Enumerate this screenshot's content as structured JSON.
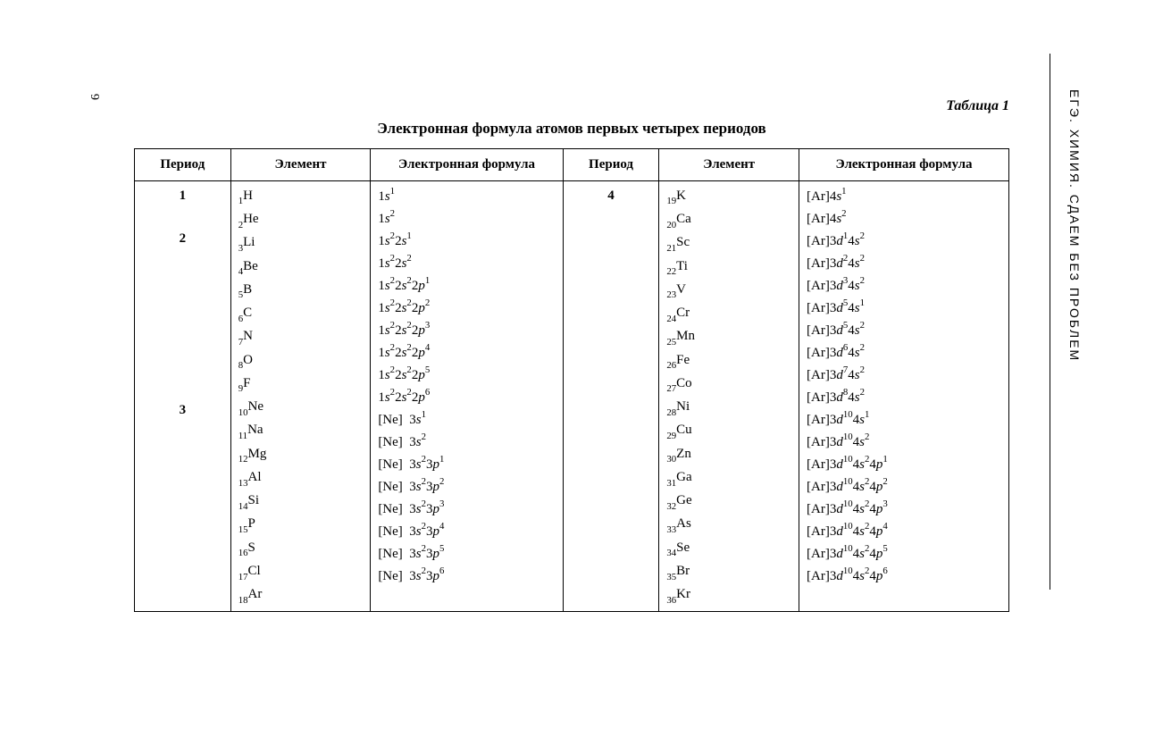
{
  "meta": {
    "side_text": "ЕГЭ. ХИМИЯ. СДАЕМ БЕЗ ПРОБЛЕМ",
    "page_number": "6",
    "table_label": "Таблица 1",
    "title": "Электронная формула атомов первых четырех периодов",
    "background_color": "#ffffff",
    "text_color": "#000000",
    "border_color": "#000000",
    "title_fontsize": 17,
    "body_fontsize": 15
  },
  "headers": {
    "period": "Период",
    "element": "Элемент",
    "formula": "Электронная формула"
  },
  "left": [
    {
      "period": "1",
      "z": "1",
      "sym": "H",
      "formula": [
        {
          "t": "1"
        },
        {
          "t": "s",
          "i": 1
        },
        {
          "t": "1",
          "sup": 1
        }
      ]
    },
    {
      "period": "",
      "z": "2",
      "sym": "He",
      "formula": [
        {
          "t": "1"
        },
        {
          "t": "s",
          "i": 1
        },
        {
          "t": "2",
          "sup": 1
        }
      ]
    },
    {
      "period": "2",
      "z": "3",
      "sym": "Li",
      "formula": [
        {
          "t": "1"
        },
        {
          "t": "s",
          "i": 1
        },
        {
          "t": "2",
          "sup": 1
        },
        {
          "t": "2"
        },
        {
          "t": "s",
          "i": 1
        },
        {
          "t": "1",
          "sup": 1
        }
      ]
    },
    {
      "period": "",
      "z": "4",
      "sym": "Be",
      "formula": [
        {
          "t": "1"
        },
        {
          "t": "s",
          "i": 1
        },
        {
          "t": "2",
          "sup": 1
        },
        {
          "t": "2"
        },
        {
          "t": "s",
          "i": 1
        },
        {
          "t": "2",
          "sup": 1
        }
      ]
    },
    {
      "period": "",
      "z": "5",
      "sym": "B",
      "formula": [
        {
          "t": "1"
        },
        {
          "t": "s",
          "i": 1
        },
        {
          "t": "2",
          "sup": 1
        },
        {
          "t": "2"
        },
        {
          "t": "s",
          "i": 1
        },
        {
          "t": "2",
          "sup": 1
        },
        {
          "t": "2"
        },
        {
          "t": "p",
          "i": 1
        },
        {
          "t": "1",
          "sup": 1
        }
      ]
    },
    {
      "period": "",
      "z": "6",
      "sym": "C",
      "formula": [
        {
          "t": "1"
        },
        {
          "t": "s",
          "i": 1
        },
        {
          "t": "2",
          "sup": 1
        },
        {
          "t": "2"
        },
        {
          "t": "s",
          "i": 1
        },
        {
          "t": "2",
          "sup": 1
        },
        {
          "t": "2"
        },
        {
          "t": "p",
          "i": 1
        },
        {
          "t": "2",
          "sup": 1
        }
      ]
    },
    {
      "period": "",
      "z": "7",
      "sym": "N",
      "formula": [
        {
          "t": "1"
        },
        {
          "t": "s",
          "i": 1
        },
        {
          "t": "2",
          "sup": 1
        },
        {
          "t": "2"
        },
        {
          "t": "s",
          "i": 1
        },
        {
          "t": "2",
          "sup": 1
        },
        {
          "t": "2"
        },
        {
          "t": "p",
          "i": 1
        },
        {
          "t": "3",
          "sup": 1
        }
      ]
    },
    {
      "period": "",
      "z": "8",
      "sym": "O",
      "formula": [
        {
          "t": "1"
        },
        {
          "t": "s",
          "i": 1
        },
        {
          "t": "2",
          "sup": 1
        },
        {
          "t": "2"
        },
        {
          "t": "s",
          "i": 1
        },
        {
          "t": "2",
          "sup": 1
        },
        {
          "t": "2"
        },
        {
          "t": "p",
          "i": 1
        },
        {
          "t": "4",
          "sup": 1
        }
      ]
    },
    {
      "period": "",
      "z": "9",
      "sym": "F",
      "formula": [
        {
          "t": "1"
        },
        {
          "t": "s",
          "i": 1
        },
        {
          "t": "2",
          "sup": 1
        },
        {
          "t": "2"
        },
        {
          "t": "s",
          "i": 1
        },
        {
          "t": "2",
          "sup": 1
        },
        {
          "t": "2"
        },
        {
          "t": "p",
          "i": 1
        },
        {
          "t": "5",
          "sup": 1
        }
      ]
    },
    {
      "period": "",
      "z": "10",
      "sym": "Ne",
      "formula": [
        {
          "t": "1"
        },
        {
          "t": "s",
          "i": 1
        },
        {
          "t": "2",
          "sup": 1
        },
        {
          "t": "2"
        },
        {
          "t": "s",
          "i": 1
        },
        {
          "t": "2",
          "sup": 1
        },
        {
          "t": "2"
        },
        {
          "t": "p",
          "i": 1
        },
        {
          "t": "6",
          "sup": 1
        }
      ]
    },
    {
      "period": "3",
      "z": "11",
      "sym": "Na",
      "formula": [
        {
          "t": "[Ne]  3"
        },
        {
          "t": "s",
          "i": 1
        },
        {
          "t": "1",
          "sup": 1
        }
      ]
    },
    {
      "period": "",
      "z": "12",
      "sym": "Mg",
      "formula": [
        {
          "t": "[Ne]  3"
        },
        {
          "t": "s",
          "i": 1
        },
        {
          "t": "2",
          "sup": 1
        }
      ]
    },
    {
      "period": "",
      "z": "13",
      "sym": "Al",
      "formula": [
        {
          "t": "[Ne]  3"
        },
        {
          "t": "s",
          "i": 1
        },
        {
          "t": "2",
          "sup": 1
        },
        {
          "t": "3"
        },
        {
          "t": "p",
          "i": 1
        },
        {
          "t": "1",
          "sup": 1
        }
      ]
    },
    {
      "period": "",
      "z": "14",
      "sym": "Si",
      "formula": [
        {
          "t": "[Ne]  3"
        },
        {
          "t": "s",
          "i": 1
        },
        {
          "t": "2",
          "sup": 1
        },
        {
          "t": "3"
        },
        {
          "t": "p",
          "i": 1
        },
        {
          "t": "2",
          "sup": 1
        }
      ]
    },
    {
      "period": "",
      "z": "15",
      "sym": "P",
      "formula": [
        {
          "t": "[Ne]  3"
        },
        {
          "t": "s",
          "i": 1
        },
        {
          "t": "2",
          "sup": 1
        },
        {
          "t": "3"
        },
        {
          "t": "p",
          "i": 1
        },
        {
          "t": "3",
          "sup": 1
        }
      ]
    },
    {
      "period": "",
      "z": "16",
      "sym": "S",
      "formula": [
        {
          "t": "[Ne]  3"
        },
        {
          "t": "s",
          "i": 1
        },
        {
          "t": "2",
          "sup": 1
        },
        {
          "t": "3"
        },
        {
          "t": "p",
          "i": 1
        },
        {
          "t": "4",
          "sup": 1
        }
      ]
    },
    {
      "period": "",
      "z": "17",
      "sym": "Cl",
      "formula": [
        {
          "t": "[Ne]  3"
        },
        {
          "t": "s",
          "i": 1
        },
        {
          "t": "2",
          "sup": 1
        },
        {
          "t": "3"
        },
        {
          "t": "p",
          "i": 1
        },
        {
          "t": "5",
          "sup": 1
        }
      ]
    },
    {
      "period": "",
      "z": "18",
      "sym": "Ar",
      "formula": [
        {
          "t": "[Ne]  3"
        },
        {
          "t": "s",
          "i": 1
        },
        {
          "t": "2",
          "sup": 1
        },
        {
          "t": "3"
        },
        {
          "t": "p",
          "i": 1
        },
        {
          "t": "6",
          "sup": 1
        }
      ]
    }
  ],
  "right": [
    {
      "period": "4",
      "z": "19",
      "sym": "K",
      "formula": [
        {
          "t": "[Ar]4"
        },
        {
          "t": "s",
          "i": 1
        },
        {
          "t": "1",
          "sup": 1
        }
      ]
    },
    {
      "period": "",
      "z": "20",
      "sym": "Ca",
      "formula": [
        {
          "t": "[Ar]4"
        },
        {
          "t": "s",
          "i": 1
        },
        {
          "t": "2",
          "sup": 1
        }
      ]
    },
    {
      "period": "",
      "z": "21",
      "sym": "Sc",
      "formula": [
        {
          "t": "[Ar]3"
        },
        {
          "t": "d",
          "i": 1
        },
        {
          "t": "1",
          "sup": 1
        },
        {
          "t": "4"
        },
        {
          "t": "s",
          "i": 1
        },
        {
          "t": "2",
          "sup": 1
        }
      ]
    },
    {
      "period": "",
      "z": "22",
      "sym": "Ti",
      "formula": [
        {
          "t": "[Ar]3"
        },
        {
          "t": "d",
          "i": 1
        },
        {
          "t": "2",
          "sup": 1
        },
        {
          "t": "4"
        },
        {
          "t": "s",
          "i": 1
        },
        {
          "t": "2",
          "sup": 1
        }
      ]
    },
    {
      "period": "",
      "z": "23",
      "sym": "V",
      "formula": [
        {
          "t": "[Ar]3"
        },
        {
          "t": "d",
          "i": 1
        },
        {
          "t": "3",
          "sup": 1
        },
        {
          "t": "4"
        },
        {
          "t": "s",
          "i": 1
        },
        {
          "t": "2",
          "sup": 1
        }
      ]
    },
    {
      "period": "",
      "z": "24",
      "sym": "Cr",
      "formula": [
        {
          "t": "[Ar]3"
        },
        {
          "t": "d",
          "i": 1
        },
        {
          "t": "5",
          "sup": 1
        },
        {
          "t": "4"
        },
        {
          "t": "s",
          "i": 1
        },
        {
          "t": "1",
          "sup": 1
        }
      ]
    },
    {
      "period": "",
      "z": "25",
      "sym": "Mn",
      "formula": [
        {
          "t": "[Ar]3"
        },
        {
          "t": "d",
          "i": 1
        },
        {
          "t": "5",
          "sup": 1
        },
        {
          "t": "4"
        },
        {
          "t": "s",
          "i": 1
        },
        {
          "t": "2",
          "sup": 1
        }
      ]
    },
    {
      "period": "",
      "z": "26",
      "sym": "Fe",
      "formula": [
        {
          "t": "[Ar]3"
        },
        {
          "t": "d",
          "i": 1
        },
        {
          "t": "6",
          "sup": 1
        },
        {
          "t": "4"
        },
        {
          "t": "s",
          "i": 1
        },
        {
          "t": "2",
          "sup": 1
        }
      ]
    },
    {
      "period": "",
      "z": "27",
      "sym": "Co",
      "formula": [
        {
          "t": "[Ar]3"
        },
        {
          "t": "d",
          "i": 1
        },
        {
          "t": "7",
          "sup": 1
        },
        {
          "t": "4"
        },
        {
          "t": "s",
          "i": 1
        },
        {
          "t": "2",
          "sup": 1
        }
      ]
    },
    {
      "period": "",
      "z": "28",
      "sym": "Ni",
      "formula": [
        {
          "t": "[Ar]3"
        },
        {
          "t": "d",
          "i": 1
        },
        {
          "t": "8",
          "sup": 1
        },
        {
          "t": "4"
        },
        {
          "t": "s",
          "i": 1
        },
        {
          "t": "2",
          "sup": 1
        }
      ]
    },
    {
      "period": "",
      "z": "29",
      "sym": "Cu",
      "formula": [
        {
          "t": "[Ar]3"
        },
        {
          "t": "d",
          "i": 1
        },
        {
          "t": "10",
          "sup": 1
        },
        {
          "t": "4"
        },
        {
          "t": "s",
          "i": 1
        },
        {
          "t": "1",
          "sup": 1
        }
      ]
    },
    {
      "period": "",
      "z": "30",
      "sym": "Zn",
      "formula": [
        {
          "t": "[Ar]3"
        },
        {
          "t": "d",
          "i": 1
        },
        {
          "t": "10",
          "sup": 1
        },
        {
          "t": "4"
        },
        {
          "t": "s",
          "i": 1
        },
        {
          "t": "2",
          "sup": 1
        }
      ]
    },
    {
      "period": "",
      "z": "31",
      "sym": "Ga",
      "formula": [
        {
          "t": "[Ar]3"
        },
        {
          "t": "d",
          "i": 1
        },
        {
          "t": "10",
          "sup": 1
        },
        {
          "t": "4"
        },
        {
          "t": "s",
          "i": 1
        },
        {
          "t": "2",
          "sup": 1
        },
        {
          "t": "4"
        },
        {
          "t": "p",
          "i": 1
        },
        {
          "t": "1",
          "sup": 1
        }
      ]
    },
    {
      "period": "",
      "z": "32",
      "sym": "Ge",
      "formula": [
        {
          "t": "[Ar]3"
        },
        {
          "t": "d",
          "i": 1
        },
        {
          "t": "10",
          "sup": 1
        },
        {
          "t": "4"
        },
        {
          "t": "s",
          "i": 1
        },
        {
          "t": "2",
          "sup": 1
        },
        {
          "t": "4"
        },
        {
          "t": "p",
          "i": 1
        },
        {
          "t": "2",
          "sup": 1
        }
      ]
    },
    {
      "period": "",
      "z": "33",
      "sym": "As",
      "formula": [
        {
          "t": "[Ar]3"
        },
        {
          "t": "d",
          "i": 1
        },
        {
          "t": "10",
          "sup": 1
        },
        {
          "t": "4"
        },
        {
          "t": "s",
          "i": 1
        },
        {
          "t": "2",
          "sup": 1
        },
        {
          "t": "4"
        },
        {
          "t": "p",
          "i": 1
        },
        {
          "t": "3",
          "sup": 1
        }
      ]
    },
    {
      "period": "",
      "z": "34",
      "sym": "Se",
      "formula": [
        {
          "t": "[Ar]3"
        },
        {
          "t": "d",
          "i": 1
        },
        {
          "t": "10",
          "sup": 1
        },
        {
          "t": "4"
        },
        {
          "t": "s",
          "i": 1
        },
        {
          "t": "2",
          "sup": 1
        },
        {
          "t": "4"
        },
        {
          "t": "p",
          "i": 1
        },
        {
          "t": "4",
          "sup": 1
        }
      ]
    },
    {
      "period": "",
      "z": "35",
      "sym": "Br",
      "formula": [
        {
          "t": "[Ar]3"
        },
        {
          "t": "d",
          "i": 1
        },
        {
          "t": "10",
          "sup": 1
        },
        {
          "t": "4"
        },
        {
          "t": "s",
          "i": 1
        },
        {
          "t": "2",
          "sup": 1
        },
        {
          "t": "4"
        },
        {
          "t": "p",
          "i": 1
        },
        {
          "t": "5",
          "sup": 1
        }
      ]
    },
    {
      "period": "",
      "z": "36",
      "sym": "Kr",
      "formula": [
        {
          "t": "[Ar]3"
        },
        {
          "t": "d",
          "i": 1
        },
        {
          "t": "10",
          "sup": 1
        },
        {
          "t": "4"
        },
        {
          "t": "s",
          "i": 1
        },
        {
          "t": "2",
          "sup": 1
        },
        {
          "t": "4"
        },
        {
          "t": "p",
          "i": 1
        },
        {
          "t": "6",
          "sup": 1
        }
      ]
    }
  ]
}
